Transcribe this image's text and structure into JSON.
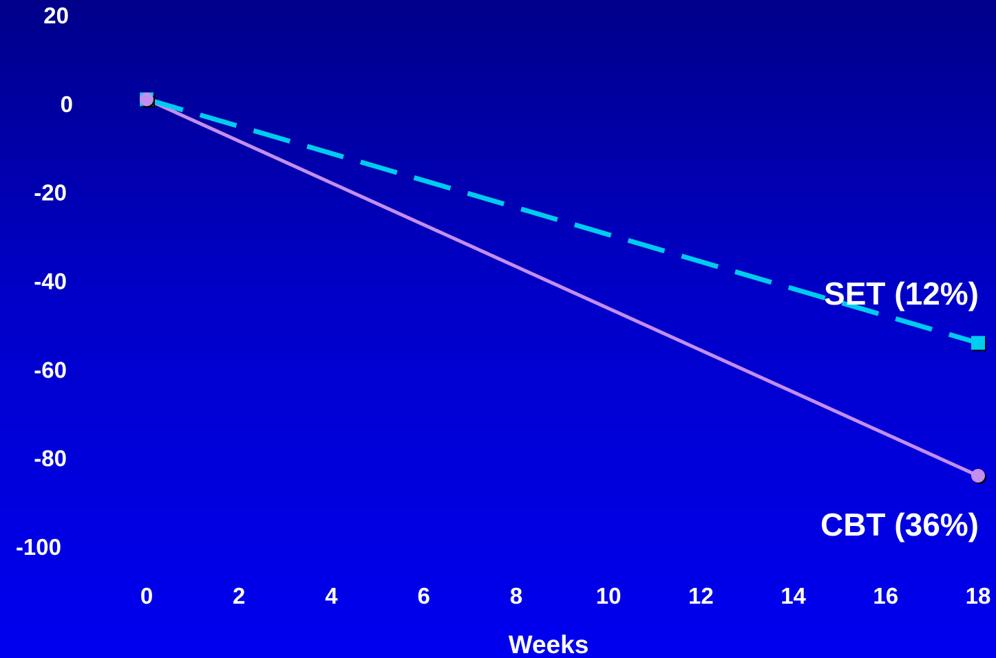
{
  "chart_data": {
    "type": "line",
    "title": "",
    "xlabel": "Weeks",
    "ylabel": "",
    "xlim": [
      0,
      18
    ],
    "ylim": [
      -100,
      20
    ],
    "x_ticks": [
      "0",
      "2",
      "4",
      "6",
      "8",
      "10",
      "12",
      "14",
      "16",
      "18"
    ],
    "y_ticks": [
      "20",
      "0",
      "-20",
      "-40",
      "-60",
      "-80",
      "-100"
    ],
    "grid": false,
    "legend": "none",
    "series": [
      {
        "name": "SET (12%)",
        "x": [
          0,
          18
        ],
        "y": [
          1,
          -54
        ],
        "color": "#00ccf0",
        "line_style": "dashed",
        "marker": "square"
      },
      {
        "name": "CBT (36%)",
        "x": [
          0,
          18
        ],
        "y": [
          1,
          -84
        ],
        "color": "#c48ef0",
        "line_style": "solid",
        "marker": "circle"
      }
    ],
    "background": "#0000c8"
  }
}
